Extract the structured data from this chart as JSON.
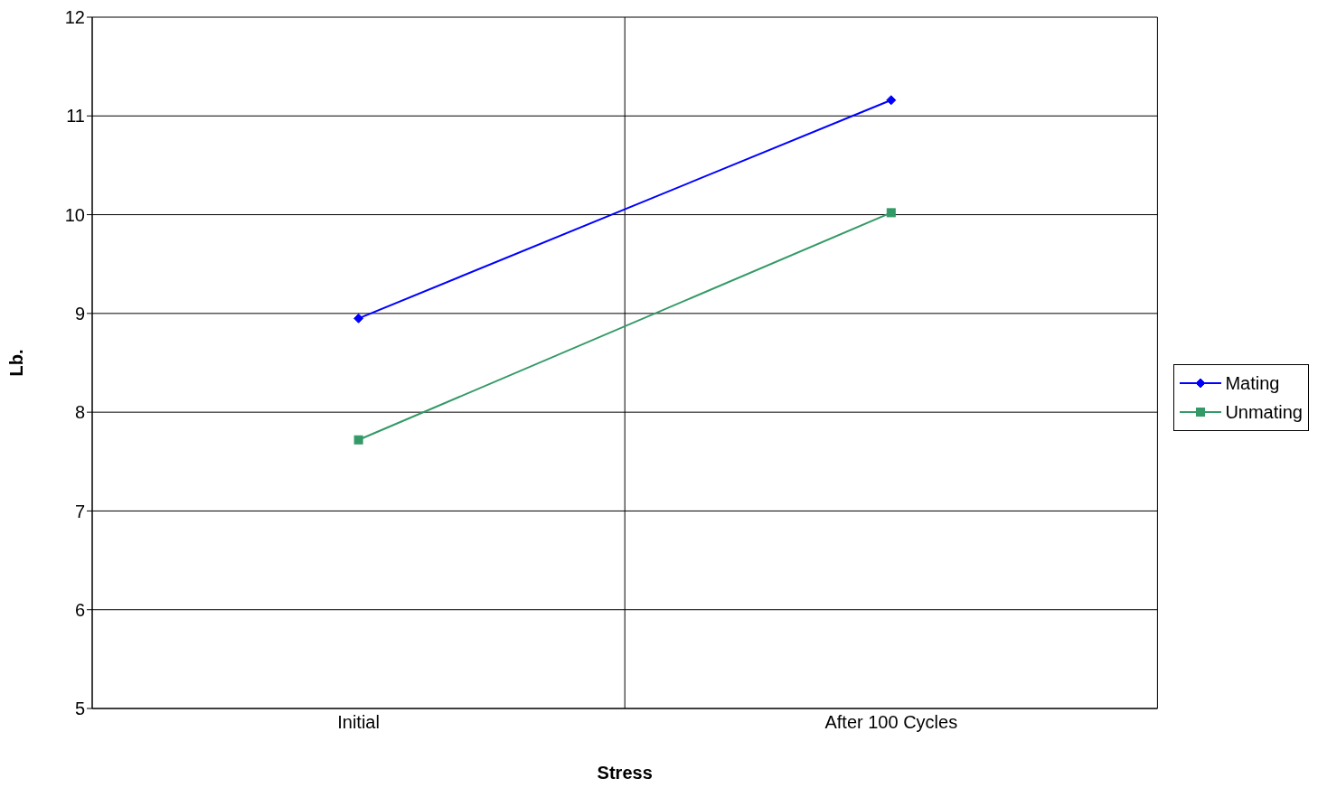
{
  "chart_data": {
    "type": "line",
    "xlabel": "Stress",
    "ylabel": "Lb.",
    "categories": [
      "Initial",
      "After 100 Cycles"
    ],
    "series": [
      {
        "name": "Mating",
        "color": "#0000ff",
        "values": [
          8.95,
          11.16
        ],
        "marker": "diamond"
      },
      {
        "name": "Unmating",
        "color": "#339966",
        "values": [
          7.72,
          10.02
        ],
        "marker": "square"
      }
    ],
    "ylim": [
      5,
      12
    ],
    "yticks": [
      5,
      6,
      7,
      8,
      9,
      10,
      11,
      12
    ],
    "grid": true,
    "legend": "right",
    "line_style": "solid"
  }
}
